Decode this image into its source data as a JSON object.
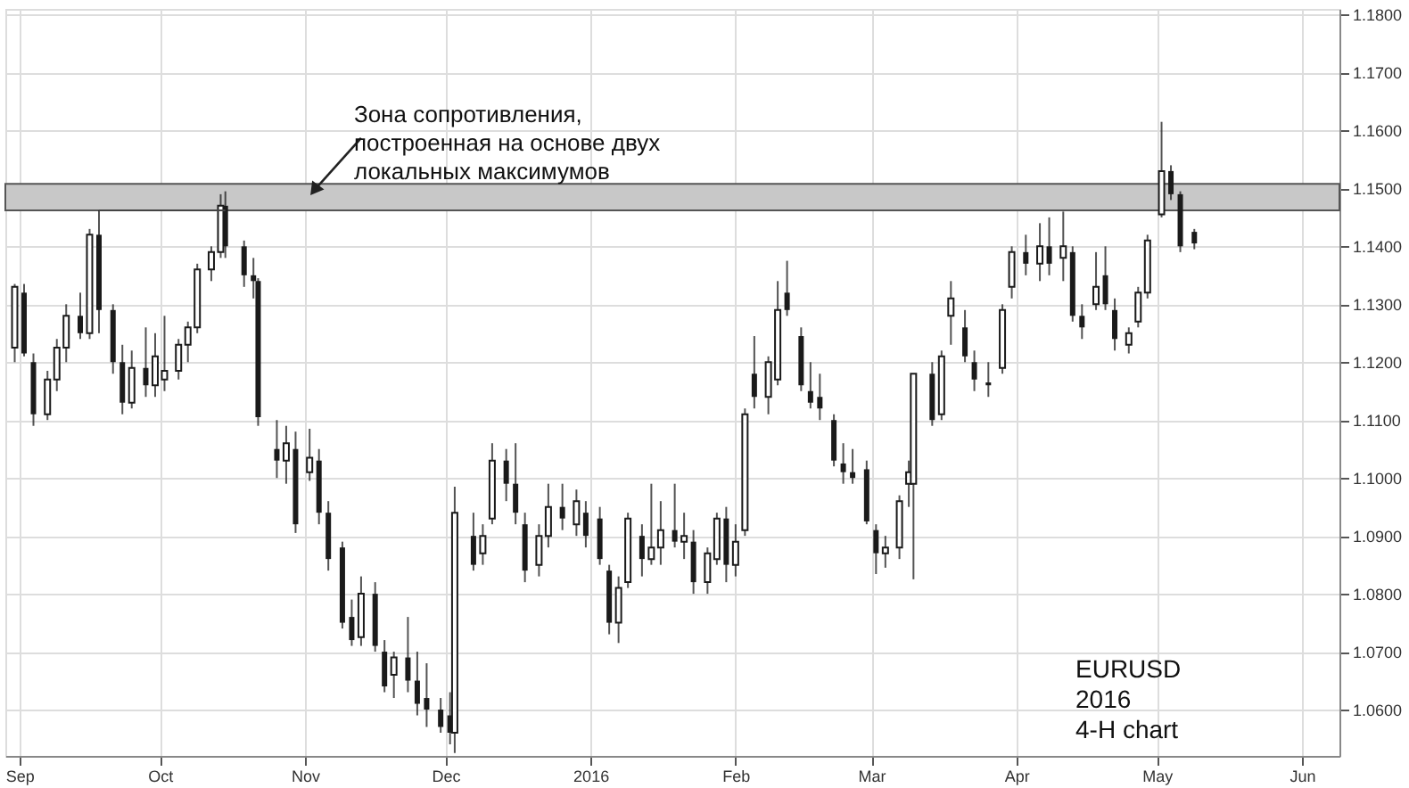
{
  "chart_data": {
    "type": "candlestick",
    "color": "#1a1a1a",
    "x": [
      "2015-08-31",
      "2015-09-02",
      "2015-09-04",
      "2015-09-07",
      "2015-09-09",
      "2015-09-11",
      "2015-09-14",
      "2015-09-16",
      "2015-09-18",
      "2015-09-21",
      "2015-09-23",
      "2015-09-25",
      "2015-09-28",
      "2015-09-30",
      "2015-10-02",
      "2015-10-05",
      "2015-10-07",
      "2015-10-09",
      "2015-10-12",
      "2015-10-14",
      "2015-10-15",
      "2015-10-19",
      "2015-10-21",
      "2015-10-22",
      "2015-10-26",
      "2015-10-28",
      "2015-10-30",
      "2015-11-02",
      "2015-11-04",
      "2015-11-06",
      "2015-11-09",
      "2015-11-11",
      "2015-11-13",
      "2015-11-16",
      "2015-11-18",
      "2015-11-20",
      "2015-11-23",
      "2015-11-25",
      "2015-11-27",
      "2015-11-30",
      "2015-12-02",
      "2015-12-03",
      "2015-12-07",
      "2015-12-09",
      "2015-12-11",
      "2015-12-14",
      "2015-12-16",
      "2015-12-18",
      "2015-12-21",
      "2015-12-23",
      "2015-12-26",
      "2015-12-29",
      "2015-12-31",
      "2016-01-03",
      "2016-01-05",
      "2016-01-07",
      "2016-01-09",
      "2016-01-12",
      "2016-01-14",
      "2016-01-16",
      "2016-01-19",
      "2016-01-21",
      "2016-01-23",
      "2016-01-26",
      "2016-01-28",
      "2016-01-30",
      "2016-02-01",
      "2016-02-03",
      "2016-02-05",
      "2016-02-08",
      "2016-02-10",
      "2016-02-12",
      "2016-02-15",
      "2016-02-17",
      "2016-02-19",
      "2016-02-22",
      "2016-02-24",
      "2016-02-26",
      "2016-02-29",
      "2016-03-02",
      "2016-03-04",
      "2016-03-07",
      "2016-03-09",
      "2016-03-10",
      "2016-03-14",
      "2016-03-16",
      "2016-03-18",
      "2016-03-21",
      "2016-03-23",
      "2016-03-26",
      "2016-03-29",
      "2016-03-31",
      "2016-04-03",
      "2016-04-06",
      "2016-04-08",
      "2016-04-11",
      "2016-04-13",
      "2016-04-15",
      "2016-04-18",
      "2016-04-20",
      "2016-04-22",
      "2016-04-25",
      "2016-04-27",
      "2016-04-29",
      "2016-05-02",
      "2016-05-04",
      "2016-05-06",
      "2016-05-09"
    ],
    "ohlc": [
      [
        1.1225,
        1.1335,
        1.12,
        1.133
      ],
      [
        1.132,
        1.1335,
        1.121,
        1.1215
      ],
      [
        1.12,
        1.1215,
        1.109,
        1.111
      ],
      [
        1.111,
        1.1185,
        1.11,
        1.117
      ],
      [
        1.117,
        1.124,
        1.115,
        1.1225
      ],
      [
        1.1225,
        1.13,
        1.12,
        1.128
      ],
      [
        1.128,
        1.132,
        1.124,
        1.125
      ],
      [
        1.125,
        1.143,
        1.124,
        1.142
      ],
      [
        1.142,
        1.1462,
        1.125,
        1.129
      ],
      [
        1.129,
        1.13,
        1.118,
        1.12
      ],
      [
        1.12,
        1.123,
        1.111,
        1.113
      ],
      [
        1.113,
        1.122,
        1.112,
        1.119
      ],
      [
        1.119,
        1.126,
        1.114,
        1.116
      ],
      [
        1.116,
        1.125,
        1.114,
        1.121
      ],
      [
        1.117,
        1.128,
        1.115,
        1.1185
      ],
      [
        1.1185,
        1.124,
        1.117,
        1.123
      ],
      [
        1.123,
        1.127,
        1.12,
        1.126
      ],
      [
        1.126,
        1.137,
        1.125,
        1.136
      ],
      [
        1.136,
        1.14,
        1.134,
        1.139
      ],
      [
        1.139,
        1.149,
        1.138,
        1.147
      ],
      [
        1.147,
        1.1495,
        1.138,
        1.14
      ],
      [
        1.14,
        1.141,
        1.133,
        1.135
      ],
      [
        1.135,
        1.138,
        1.131,
        1.134
      ],
      [
        1.134,
        1.1345,
        1.109,
        1.1105
      ],
      [
        1.105,
        1.11,
        1.1,
        1.103
      ],
      [
        1.103,
        1.109,
        1.099,
        1.106
      ],
      [
        1.105,
        1.108,
        1.0905,
        1.092
      ],
      [
        1.101,
        1.1085,
        1.0995,
        1.1035
      ],
      [
        1.103,
        1.105,
        1.092,
        1.094
      ],
      [
        1.094,
        1.096,
        1.084,
        1.086
      ],
      [
        1.088,
        1.089,
        1.074,
        1.075
      ],
      [
        1.076,
        1.079,
        1.071,
        1.072
      ],
      [
        1.0725,
        1.083,
        1.071,
        1.08
      ],
      [
        1.08,
        1.082,
        1.07,
        1.071
      ],
      [
        1.07,
        1.072,
        1.063,
        1.064
      ],
      [
        1.066,
        1.07,
        1.062,
        1.069
      ],
      [
        1.069,
        1.076,
        1.063,
        1.065
      ],
      [
        1.065,
        1.07,
        1.059,
        1.061
      ],
      [
        1.062,
        1.068,
        1.057,
        1.06
      ],
      [
        1.06,
        1.062,
        1.056,
        1.057
      ],
      [
        1.059,
        1.063,
        1.054,
        1.056
      ],
      [
        1.056,
        1.0985,
        1.0525,
        1.094
      ],
      [
        1.09,
        1.094,
        1.084,
        1.085
      ],
      [
        1.087,
        1.092,
        1.085,
        1.09
      ],
      [
        1.093,
        1.106,
        1.092,
        1.103
      ],
      [
        1.103,
        1.105,
        1.096,
        1.099
      ],
      [
        1.099,
        1.106,
        1.092,
        1.094
      ],
      [
        1.092,
        1.094,
        1.082,
        1.084
      ],
      [
        1.085,
        1.092,
        1.083,
        1.09
      ],
      [
        1.09,
        1.099,
        1.088,
        1.095
      ],
      [
        1.095,
        1.099,
        1.091,
        1.093
      ],
      [
        1.092,
        1.098,
        1.09,
        1.096
      ],
      [
        1.094,
        1.096,
        1.088,
        1.09
      ],
      [
        1.093,
        1.095,
        1.085,
        1.086
      ],
      [
        1.084,
        1.085,
        1.073,
        1.075
      ],
      [
        1.075,
        1.083,
        1.0715,
        1.081
      ],
      [
        1.082,
        1.094,
        1.081,
        1.093
      ],
      [
        1.09,
        1.092,
        1.083,
        1.086
      ],
      [
        1.086,
        1.099,
        1.085,
        1.088
      ],
      [
        1.088,
        1.096,
        1.085,
        1.091
      ],
      [
        1.091,
        1.099,
        1.088,
        1.089
      ],
      [
        1.089,
        1.094,
        1.086,
        1.09
      ],
      [
        1.089,
        1.091,
        1.08,
        1.082
      ],
      [
        1.082,
        1.088,
        1.08,
        1.087
      ],
      [
        1.086,
        1.094,
        1.085,
        1.093
      ],
      [
        1.093,
        1.095,
        1.082,
        1.085
      ],
      [
        1.085,
        1.092,
        1.083,
        1.089
      ],
      [
        1.091,
        1.112,
        1.09,
        1.111
      ],
      [
        1.118,
        1.1245,
        1.112,
        1.114
      ],
      [
        1.114,
        1.121,
        1.111,
        1.12
      ],
      [
        1.117,
        1.134,
        1.116,
        1.129
      ],
      [
        1.132,
        1.1375,
        1.128,
        1.129
      ],
      [
        1.1245,
        1.126,
        1.115,
        1.116
      ],
      [
        1.115,
        1.12,
        1.112,
        1.113
      ],
      [
        1.114,
        1.118,
        1.11,
        1.112
      ],
      [
        1.11,
        1.111,
        1.102,
        1.103
      ],
      [
        1.1025,
        1.106,
        1.099,
        1.101
      ],
      [
        1.101,
        1.105,
        1.099,
        1.1
      ],
      [
        1.1015,
        1.103,
        1.092,
        1.0925
      ],
      [
        1.091,
        1.092,
        1.0834,
        1.087
      ],
      [
        1.087,
        1.09,
        1.0845,
        1.088
      ],
      [
        1.088,
        1.097,
        1.086,
        1.096
      ],
      [
        1.099,
        1.103,
        1.095,
        1.101
      ],
      [
        1.099,
        1.118,
        1.0825,
        1.118
      ],
      [
        1.118,
        1.12,
        1.109,
        1.11
      ],
      [
        1.111,
        1.122,
        1.11,
        1.121
      ],
      [
        1.128,
        1.134,
        1.123,
        1.131
      ],
      [
        1.126,
        1.129,
        1.12,
        1.121
      ],
      [
        1.12,
        1.122,
        1.115,
        1.117
      ],
      [
        1.1165,
        1.12,
        1.114,
        1.116
      ],
      [
        1.119,
        1.13,
        1.118,
        1.129
      ],
      [
        1.133,
        1.14,
        1.131,
        1.139
      ],
      [
        1.139,
        1.142,
        1.135,
        1.137
      ],
      [
        1.137,
        1.144,
        1.134,
        1.14
      ],
      [
        1.14,
        1.145,
        1.135,
        1.137
      ],
      [
        1.138,
        1.146,
        1.134,
        1.14
      ],
      [
        1.139,
        1.14,
        1.127,
        1.128
      ],
      [
        1.128,
        1.13,
        1.124,
        1.126
      ],
      [
        1.13,
        1.139,
        1.129,
        1.133
      ],
      [
        1.135,
        1.14,
        1.129,
        1.13
      ],
      [
        1.129,
        1.131,
        1.122,
        1.124
      ],
      [
        1.123,
        1.126,
        1.1215,
        1.125
      ],
      [
        1.127,
        1.133,
        1.126,
        1.132
      ],
      [
        1.132,
        1.142,
        1.131,
        1.141
      ],
      [
        1.1455,
        1.1615,
        1.145,
        1.153
      ],
      [
        1.153,
        1.154,
        1.148,
        1.149
      ],
      [
        1.149,
        1.1495,
        1.139,
        1.14
      ],
      [
        1.1425,
        1.143,
        1.1395,
        1.1405
      ]
    ],
    "series": [
      {
        "type": "line",
        "color": "#444444",
        "x": [
          "2015-09-18",
          "2015-10-15"
        ],
        "values": [
          1.1462,
          1.1462
        ]
      }
    ],
    "bands": [
      {
        "axis": "y",
        "from": 1.1462,
        "to": 1.1508,
        "color": "#c8c8c8"
      }
    ],
    "xlim": [
      "2015-08-29",
      "2016-06-09"
    ],
    "xticks": [
      {
        "value": "2015-09-01",
        "label": "Sep"
      },
      {
        "value": "2015-10-01",
        "label": "Oct"
      },
      {
        "value": "2015-11-01",
        "label": "Nov"
      },
      {
        "value": "2015-12-01",
        "label": "Dec"
      },
      {
        "value": "2016-01-01",
        "label": "2016"
      },
      {
        "value": "2016-02-01",
        "label": "Feb"
      },
      {
        "value": "2016-03-01",
        "label": "Mar"
      },
      {
        "value": "2016-04-01",
        "label": "Apr"
      },
      {
        "value": "2016-05-01",
        "label": "May"
      },
      {
        "value": "2016-06-01",
        "label": "Jun"
      }
    ],
    "ylim": [
      1.052,
      1.181
    ],
    "yticks": [
      {
        "value": 1.06,
        "label": "1.0600"
      },
      {
        "value": 1.07,
        "label": "1.0700"
      },
      {
        "value": 1.08,
        "label": "1.0800"
      },
      {
        "value": 1.09,
        "label": "1.0900"
      },
      {
        "value": 1.1,
        "label": "1.1000"
      },
      {
        "value": 1.11,
        "label": "1.1100"
      },
      {
        "value": 1.12,
        "label": "1.1200"
      },
      {
        "value": 1.13,
        "label": "1.1300"
      },
      {
        "value": 1.14,
        "label": "1.1400"
      },
      {
        "value": 1.15,
        "label": "1.1500"
      },
      {
        "value": 1.16,
        "label": "1.1600"
      },
      {
        "value": 1.17,
        "label": "1.1700"
      },
      {
        "value": 1.18,
        "label": "1.1800"
      }
    ],
    "grid": true,
    "annotations": [
      {
        "text": "Зона сопротивления,\nпостроенная на основе двух\nлокальных максимумов",
        "x": "2015-11-03",
        "y": 1.1497
      },
      "EURUSD\n2016\n4-H chart"
    ]
  }
}
